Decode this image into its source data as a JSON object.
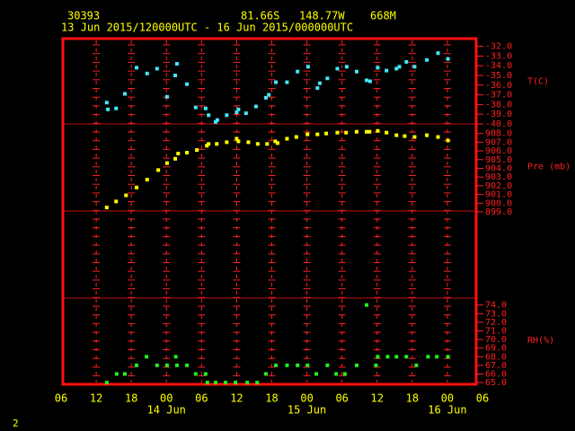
{
  "header": {
    "station": "30393",
    "lat": "81.66S",
    "lon": "148.77W",
    "elev": "668M",
    "period": "13 Jun 2015/120000UTC - 16 Jun 2015/000000UTC",
    "page": "2"
  },
  "chart_data": [
    {
      "type": "scatter",
      "ylabel": "T(C)",
      "color": "#40e8f8",
      "xlim": [
        0,
        72
      ],
      "ylim": [
        -40,
        -31.2
      ],
      "yticks": [
        {
          "value": -32,
          "label": "-32.0"
        },
        {
          "value": -33,
          "label": "-33.0"
        },
        {
          "value": -34,
          "label": "-34.0"
        },
        {
          "value": -35,
          "label": "-35.0"
        },
        {
          "value": -36,
          "label": "-36.0"
        },
        {
          "value": -37,
          "label": "-37.0"
        },
        {
          "value": -38,
          "label": "-38.0"
        },
        {
          "value": -39,
          "label": "-39.0"
        },
        {
          "value": -40,
          "label": "-40.0"
        }
      ],
      "x": [
        7.8,
        8,
        9.4,
        10.9,
        12.9,
        14.7,
        16.4,
        18.1,
        19.5,
        19.8,
        21.5,
        23,
        24.7,
        25.2,
        26.4,
        26.7,
        28.3,
        30,
        30.3,
        31.6,
        33.3,
        35,
        35.5,
        36.7,
        38.6,
        40.4,
        42.2,
        43.8,
        44.2,
        45.5,
        47.2,
        48.8,
        50.5,
        52.2,
        52.8,
        54.1,
        55.6,
        57.3,
        57.8,
        59,
        60.4,
        62.5,
        64.4,
        66.1
      ],
      "values": [
        -37.8,
        -38.5,
        -38.4,
        -36.9,
        -34.2,
        -34.8,
        -34.3,
        -37.2,
        -35.0,
        -33.8,
        -35.9,
        -38.3,
        -38.4,
        -39.1,
        -39.8,
        -39.6,
        -39.1,
        -38.8,
        -38.5,
        -38.9,
        -38.2,
        -37.3,
        -37.0,
        -35.7,
        -35.7,
        -34.6,
        -34.1,
        -36.3,
        -35.8,
        -35.3,
        -34.3,
        -34.1,
        -34.6,
        -35.5,
        -35.6,
        -34.2,
        -34.5,
        -34.3,
        -34.1,
        -33.6,
        -34.1,
        -33.4,
        -32.7,
        -33.3
      ]
    },
    {
      "type": "scatter",
      "ylabel": "Pre (mb)",
      "color": "#ffff00",
      "xlim": [
        0,
        72
      ],
      "ylim": [
        899.1,
        909.1
      ],
      "yticks": [
        {
          "value": 908,
          "label": "908.0"
        },
        {
          "value": 907,
          "label": "907.0"
        },
        {
          "value": 906,
          "label": "906.0"
        },
        {
          "value": 905,
          "label": "905.0"
        },
        {
          "value": 904,
          "label": "904.0"
        },
        {
          "value": 903,
          "label": "903.0"
        },
        {
          "value": 902,
          "label": "902.0"
        },
        {
          "value": 901,
          "label": "901.0"
        },
        {
          "value": 900,
          "label": "900.0"
        },
        {
          "value": 899,
          "label": "899.0"
        }
      ],
      "x": [
        7.8,
        9.4,
        11.1,
        12.9,
        14.7,
        16.6,
        18.1,
        19.5,
        20,
        21.5,
        23.2,
        24.9,
        25.2,
        26.6,
        28.3,
        30,
        30.3,
        32,
        33.6,
        35.2,
        36.6,
        37,
        38.6,
        40.2,
        42.1,
        43.8,
        45.3,
        47.2,
        48.7,
        50.5,
        52.2,
        52.7,
        54.1,
        55.6,
        57.3,
        58.7,
        60.4,
        62.5,
        64.4,
        66.1
      ],
      "values": [
        899.5,
        900.2,
        900.9,
        901.8,
        902.7,
        903.8,
        904.6,
        905.1,
        905.7,
        905.8,
        906.1,
        906.6,
        906.8,
        906.8,
        907.0,
        907.4,
        907.1,
        907.0,
        906.8,
        906.8,
        907.1,
        906.9,
        907.4,
        907.6,
        907.9,
        907.9,
        908.0,
        908.1,
        908.1,
        908.2,
        908.2,
        908.2,
        908.3,
        908.1,
        907.8,
        907.7,
        907.6,
        907.8,
        907.6,
        907.2
      ]
    },
    {
      "type": "scatter",
      "ylabel": "RH(%)",
      "color": "#20f020",
      "xlim": [
        0,
        72
      ],
      "ylim": [
        64.8,
        74.8
      ],
      "yticks": [
        {
          "value": 74,
          "label": "74.0"
        },
        {
          "value": 73,
          "label": "73.0"
        },
        {
          "value": 72,
          "label": "72.0"
        },
        {
          "value": 71,
          "label": "71.0"
        },
        {
          "value": 70,
          "label": "70.0"
        },
        {
          "value": 69,
          "label": "69.0"
        },
        {
          "value": 68,
          "label": "68.0"
        },
        {
          "value": 67,
          "label": "67.0"
        },
        {
          "value": 66,
          "label": "66.0"
        },
        {
          "value": 65,
          "label": "65.0"
        }
      ],
      "xticks": [
        {
          "value": 0,
          "label": "06"
        },
        {
          "value": 6,
          "label": "12"
        },
        {
          "value": 12,
          "label": "18"
        },
        {
          "value": 18,
          "label": "00"
        },
        {
          "value": 24,
          "label": "06"
        },
        {
          "value": 30,
          "label": "12"
        },
        {
          "value": 36,
          "label": "18"
        },
        {
          "value": 42,
          "label": "00"
        },
        {
          "value": 48,
          "label": "06"
        },
        {
          "value": 54,
          "label": "12"
        },
        {
          "value": 60,
          "label": "18"
        },
        {
          "value": 66,
          "label": "00"
        },
        {
          "value": 72,
          "label": "06"
        }
      ],
      "date_labels": [
        {
          "value": 18,
          "label": "14 Jun"
        },
        {
          "value": 42,
          "label": "15 Jun"
        },
        {
          "value": 66,
          "label": "16 Jun"
        }
      ],
      "x": [
        7.8,
        9.5,
        10.9,
        12.9,
        14.6,
        16.4,
        18.1,
        19.6,
        19.8,
        21.5,
        23,
        24.7,
        25,
        26.4,
        28.1,
        29.8,
        31.8,
        33.5,
        35,
        36.7,
        38.6,
        40.4,
        42.1,
        43.6,
        45.5,
        47,
        48.5,
        50.5,
        52.2,
        53.8,
        54.1,
        55.8,
        57.3,
        59,
        60.7,
        62.7,
        64.2,
        66.1
      ],
      "values": [
        65,
        66,
        66,
        67,
        68,
        67,
        67,
        68,
        67,
        67,
        66,
        66,
        65,
        65,
        65,
        65,
        65,
        65,
        66,
        67,
        67,
        67,
        67,
        66,
        67,
        66,
        66,
        67,
        74,
        67,
        68,
        68,
        68,
        68,
        67,
        68,
        68,
        68
      ]
    }
  ]
}
